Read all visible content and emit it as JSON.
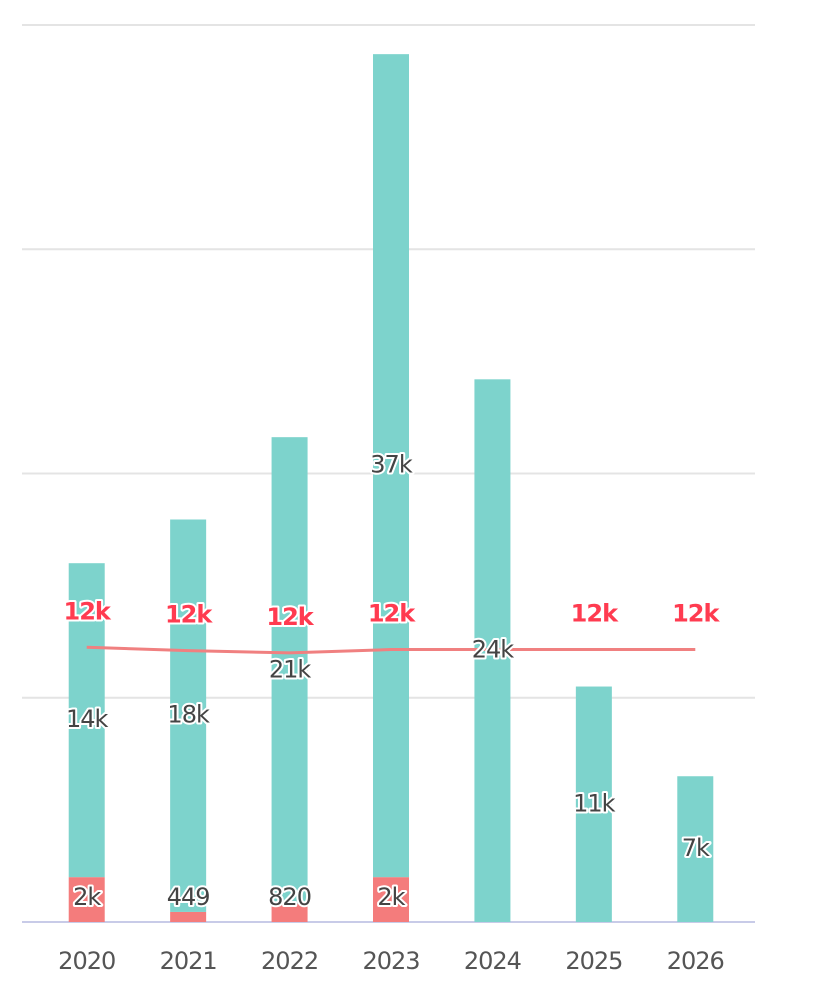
{
  "chart_data": {
    "type": "bar",
    "stacked": true,
    "categories": [
      "2020",
      "2021",
      "2022",
      "2023",
      "2024",
      "2025",
      "2026"
    ],
    "series": [
      {
        "color": "#f47c7c",
        "values": [
          2000,
          449,
          820,
          2000,
          null,
          null,
          null
        ],
        "value_labels": [
          "2k",
          "449",
          "820",
          "2k",
          null,
          null,
          null
        ]
      },
      {
        "color": "#7dd3cc",
        "values": [
          14000,
          17500,
          20800,
          36700,
          24200,
          10500,
          6500
        ],
        "value_labels": [
          "14k",
          "18k",
          "21k",
          "37k",
          "24k",
          "11k",
          "7k"
        ]
      },
      {
        "type": "line",
        "color": "#f08080",
        "values": [
          12250,
          12100,
          12000,
          12150,
          12150,
          12150,
          12150
        ],
        "value_labels": [
          "12k",
          "12k",
          "12k",
          "12k",
          null,
          "12k",
          "12k"
        ]
      }
    ],
    "ylim": [
      0,
      40000
    ],
    "yticks": [
      0,
      10000,
      20000,
      30000,
      40000
    ],
    "grid": true
  }
}
